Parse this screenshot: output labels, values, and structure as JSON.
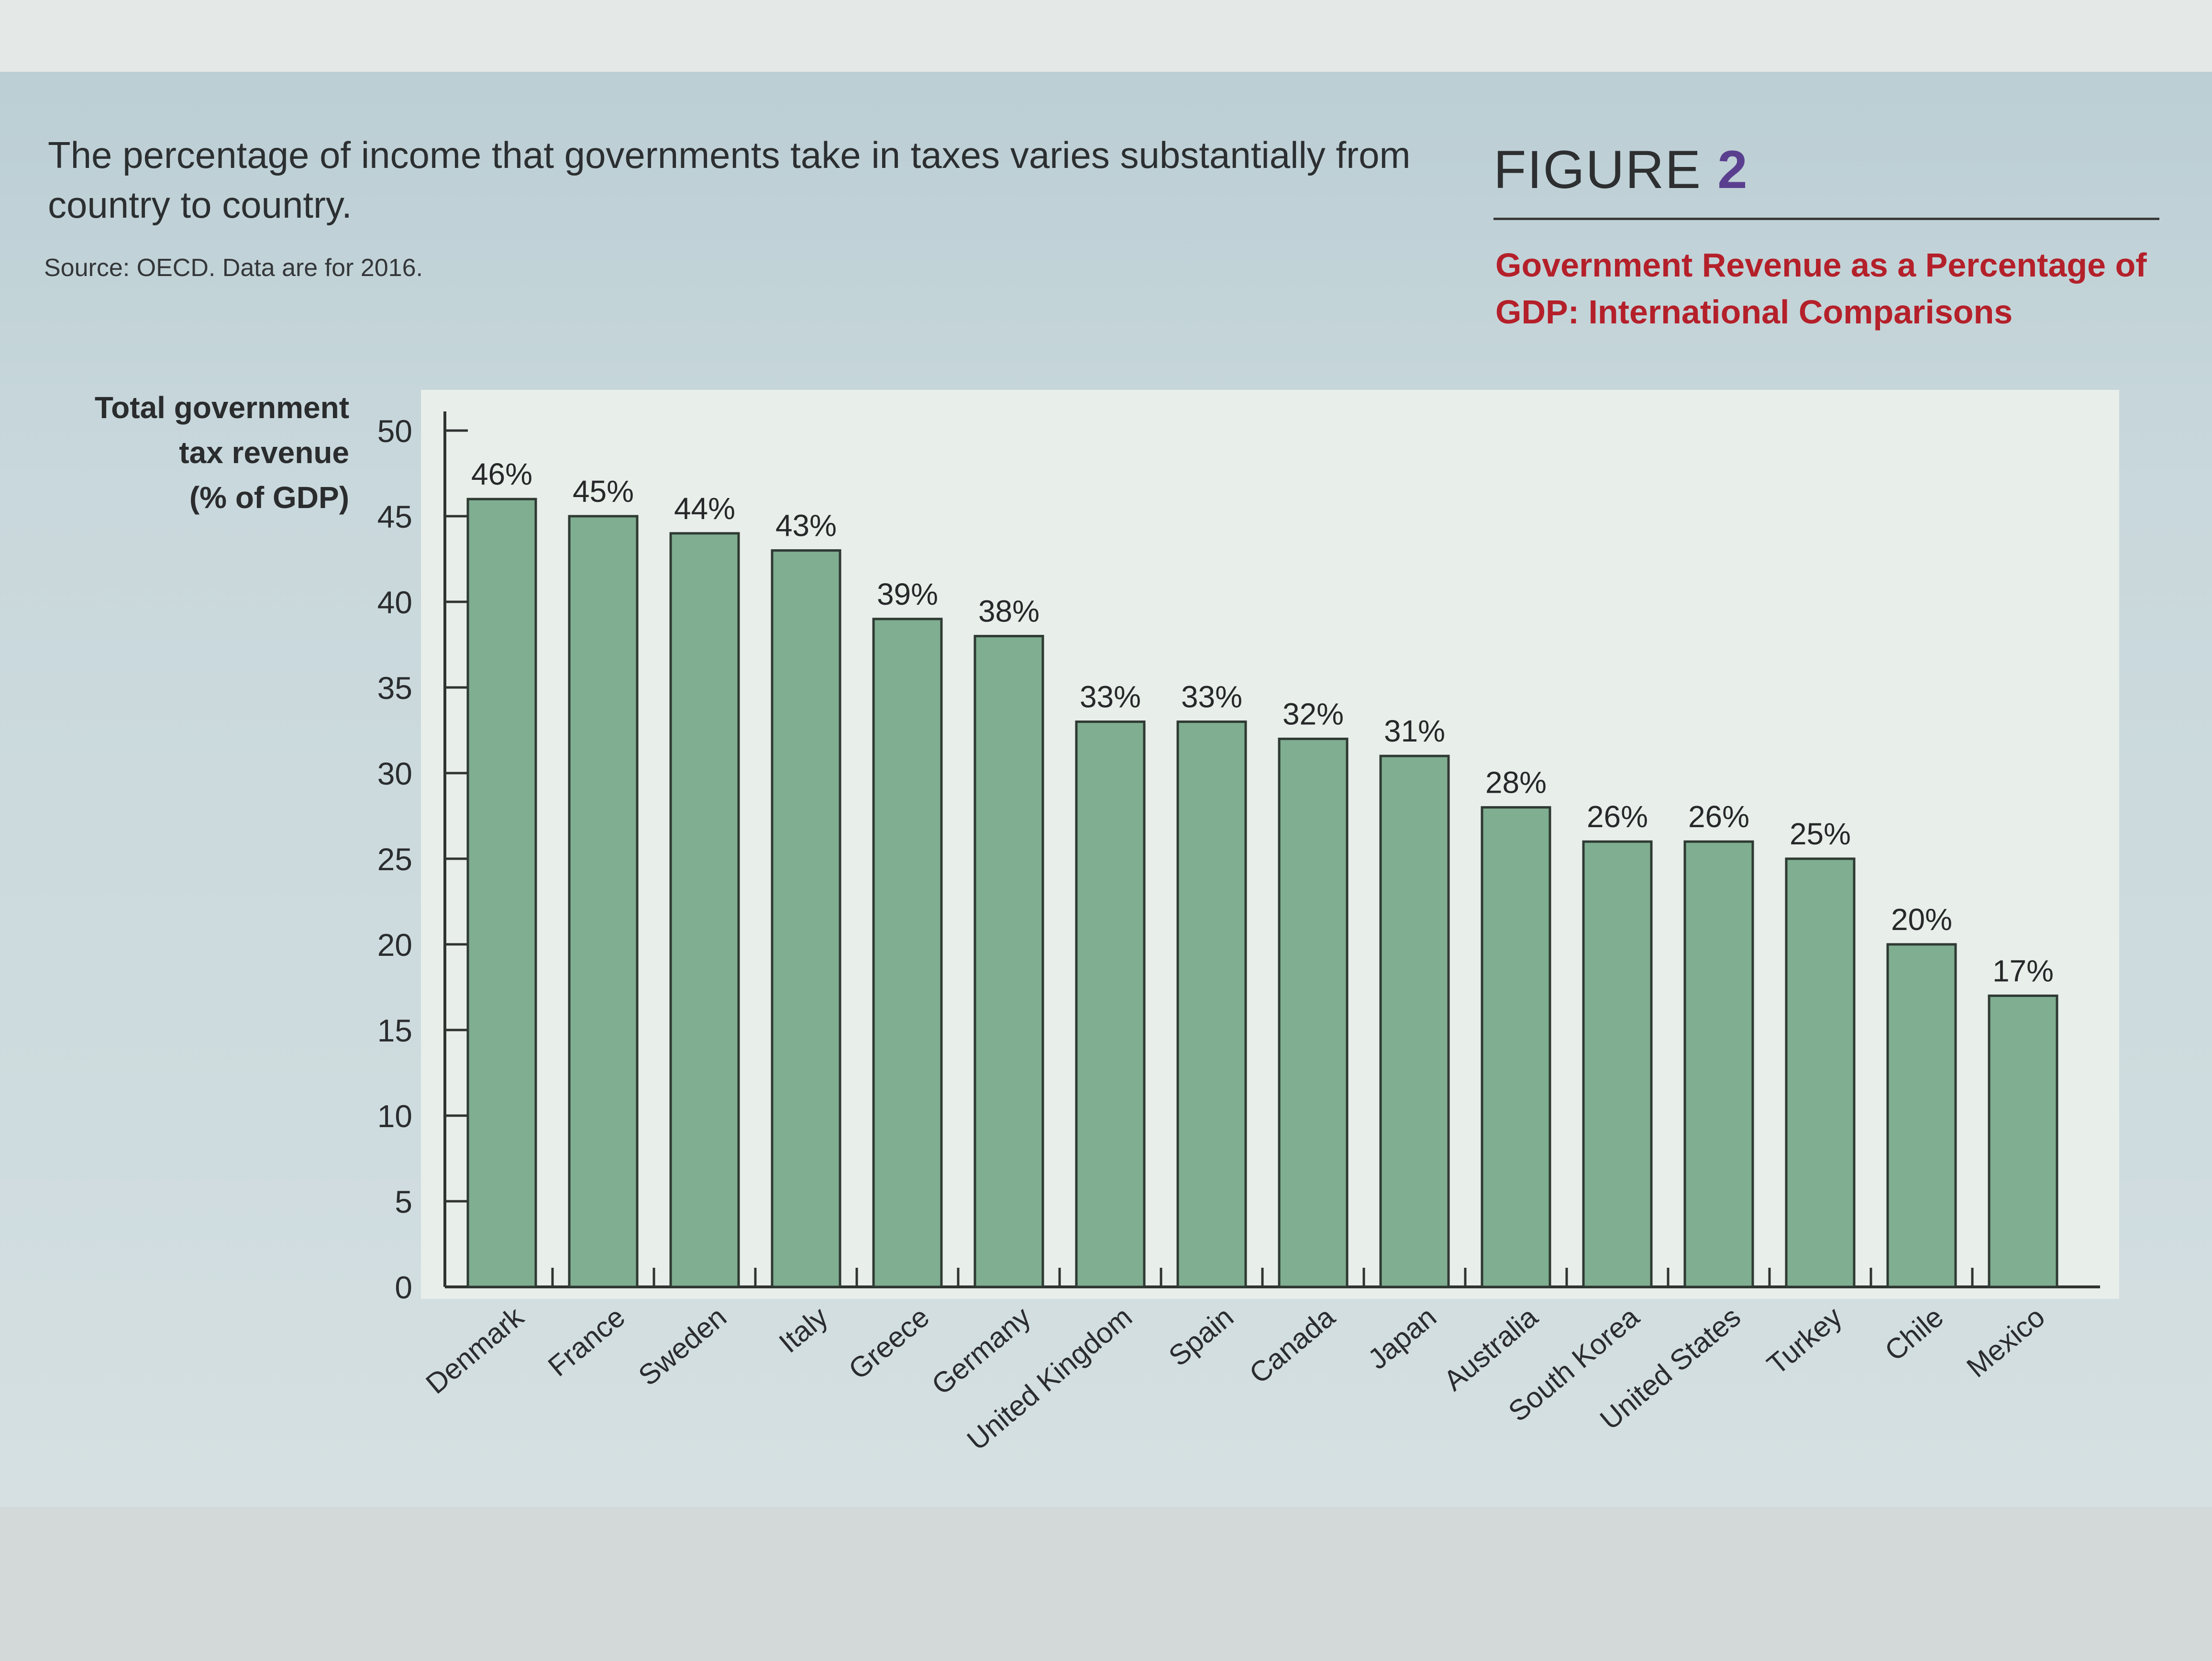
{
  "caption": "The percentage of income that governments take in taxes varies substantially from country to country.",
  "source": "Source: OECD. Data are for 2016.",
  "figure": {
    "word": "FIGURE",
    "number": "2"
  },
  "colors": {
    "bar": "#7fae91",
    "bar_stroke": "#2f3a33",
    "axis": "#2f3331",
    "title": "#b4202a",
    "figure_number": "#5a3f8f"
  },
  "chart_data": {
    "type": "bar",
    "title": "Government Revenue as a Percentage of GDP: International Comparisons",
    "ylabel_lines": [
      "Total government",
      "tax revenue",
      "(% of GDP)"
    ],
    "xlabel": "",
    "categories": [
      "Denmark",
      "France",
      "Sweden",
      "Italy",
      "Greece",
      "Germany",
      "United Kingdom",
      "Spain",
      "Canada",
      "Japan",
      "Australia",
      "South Korea",
      "United States",
      "Turkey",
      "Chile",
      "Mexico"
    ],
    "values": [
      46,
      45,
      44,
      43,
      39,
      38,
      33,
      33,
      32,
      31,
      28,
      26,
      26,
      25,
      20,
      17
    ],
    "data_labels": [
      "46%",
      "45%",
      "44%",
      "43%",
      "39%",
      "38%",
      "33%",
      "33%",
      "32%",
      "31%",
      "28%",
      "26%",
      "26%",
      "25%",
      "20%",
      "17%"
    ],
    "ylim": [
      0,
      50
    ],
    "yticks": [
      0,
      5,
      10,
      15,
      20,
      25,
      30,
      35,
      40,
      45,
      50
    ],
    "grid": false,
    "legend": "none"
  }
}
